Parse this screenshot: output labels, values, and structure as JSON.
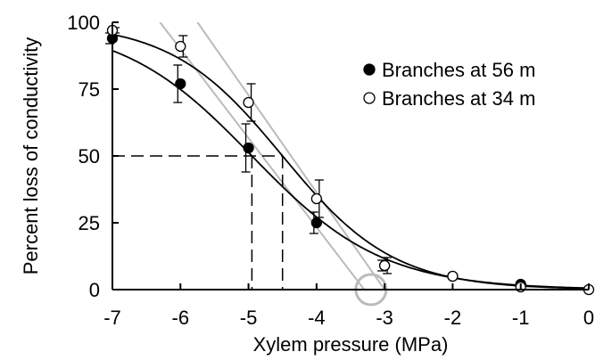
{
  "chart_data": {
    "type": "scatter",
    "xlabel": "Xylem pressure (MPa)",
    "ylabel": "Percent loss of conductivity",
    "xlim": [
      -7,
      0
    ],
    "ylim": [
      0,
      100
    ],
    "x_ticks": [
      -7,
      -6,
      -5,
      -4,
      -3,
      -2,
      -1,
      0
    ],
    "y_ticks": [
      0,
      25,
      50,
      75,
      100
    ],
    "x_tick_labels": [
      "-7",
      "-6",
      "-5",
      "-4",
      "-3",
      "-2",
      "-1",
      "0"
    ],
    "y_tick_labels": [
      "0",
      "25",
      "50",
      "75",
      "100"
    ],
    "grid": false,
    "legend_position": "top-right",
    "series": [
      {
        "name": "Branches at 56 m",
        "marker": "filled-circle",
        "x": [
          -7,
          -6,
          -5,
          -4,
          -3,
          -2,
          -1
        ],
        "y": [
          94,
          77,
          53,
          25,
          9,
          5,
          2
        ],
        "error": [
          2,
          7,
          9,
          4,
          2,
          0,
          0
        ],
        "fit_P50": -4.95,
        "fit_slope": 0.52
      },
      {
        "name": "Branches at 34 m",
        "marker": "open-circle",
        "x": [
          -7,
          -6,
          -5,
          -4,
          -3,
          -2,
          -1,
          0
        ],
        "y": [
          97,
          91,
          70,
          34,
          9,
          5,
          1,
          0
        ],
        "error": [
          1,
          4,
          7,
          7,
          3,
          0,
          0,
          0
        ],
        "fit_P50": -4.5,
        "fit_slope": 0.61
      }
    ],
    "reference_lines": {
      "y": 50,
      "x": [
        -4.95,
        -4.5
      ]
    },
    "tangent_lines": [
      {
        "x": [
          -6.3,
          -3.3
        ],
        "y": [
          100,
          0
        ]
      },
      {
        "x": [
          -5.75,
          -3.0
        ],
        "y": [
          100,
          0
        ]
      }
    ],
    "highlight": {
      "x": -3.2,
      "y": 0
    },
    "colors": {
      "fit_curve": "#000000",
      "tangent": "#bbbbbb",
      "highlight": "#bbbbbb",
      "axis": "#000000"
    }
  }
}
